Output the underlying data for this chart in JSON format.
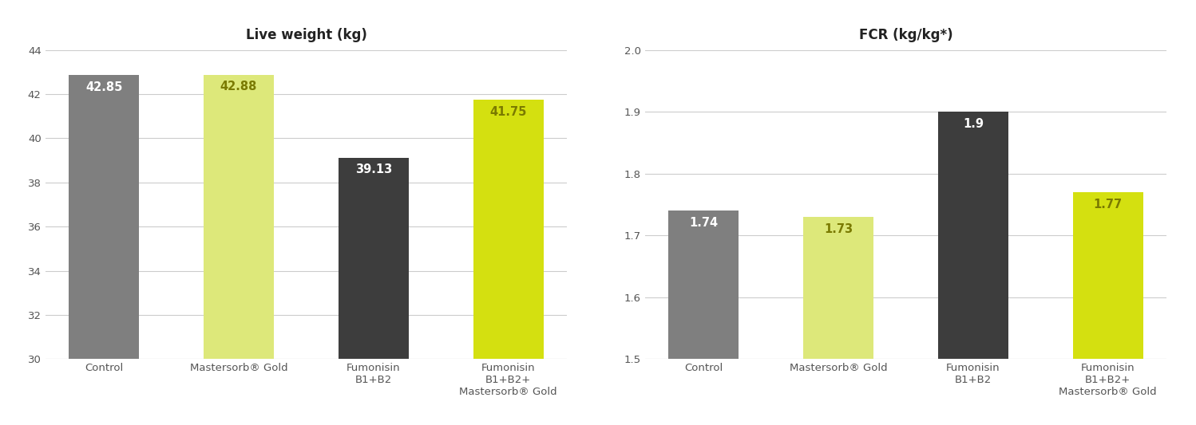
{
  "chart1": {
    "title": "Live weight (kg)",
    "categories": [
      "Control",
      "Mastersorb® Gold",
      "Fumonisin\nB1+B2",
      "Fumonisin\nB1+B2+\nMastersorb® Gold"
    ],
    "values": [
      42.85,
      42.88,
      39.13,
      41.75
    ],
    "bar_colors": [
      "#7f7f7f",
      "#dde87a",
      "#3d3d3d",
      "#d4e010"
    ],
    "label_colors": [
      "#ffffff",
      "#7a7a00",
      "#ffffff",
      "#7a7a00"
    ],
    "ylim": [
      30,
      44
    ],
    "yticks": [
      30,
      32,
      34,
      36,
      38,
      40,
      42,
      44
    ],
    "value_labels": [
      "42.85",
      "42.88",
      "39.13",
      "41.75"
    ]
  },
  "chart2": {
    "title": "FCR (kg/kg*)",
    "categories": [
      "Control",
      "Mastersorb® Gold",
      "Fumonisin\nB1+B2",
      "Fumonisin\nB1+B2+\nMastersorb® Gold"
    ],
    "values": [
      1.74,
      1.73,
      1.9,
      1.77
    ],
    "bar_colors": [
      "#7f7f7f",
      "#dde87a",
      "#3d3d3d",
      "#d4e010"
    ],
    "label_colors": [
      "#ffffff",
      "#7a7a00",
      "#ffffff",
      "#7a7a00"
    ],
    "ylim": [
      1.5,
      2.0
    ],
    "yticks": [
      1.5,
      1.6,
      1.7,
      1.8,
      1.9,
      2.0
    ],
    "value_labels": [
      "1.74",
      "1.73",
      "1.9",
      "1.77"
    ]
  },
  "background_color": "#ffffff",
  "grid_color": "#cccccc",
  "tick_color": "#555555",
  "title_fontsize": 12,
  "label_fontsize": 9.5,
  "value_fontsize": 10.5,
  "bar_width": 0.52
}
